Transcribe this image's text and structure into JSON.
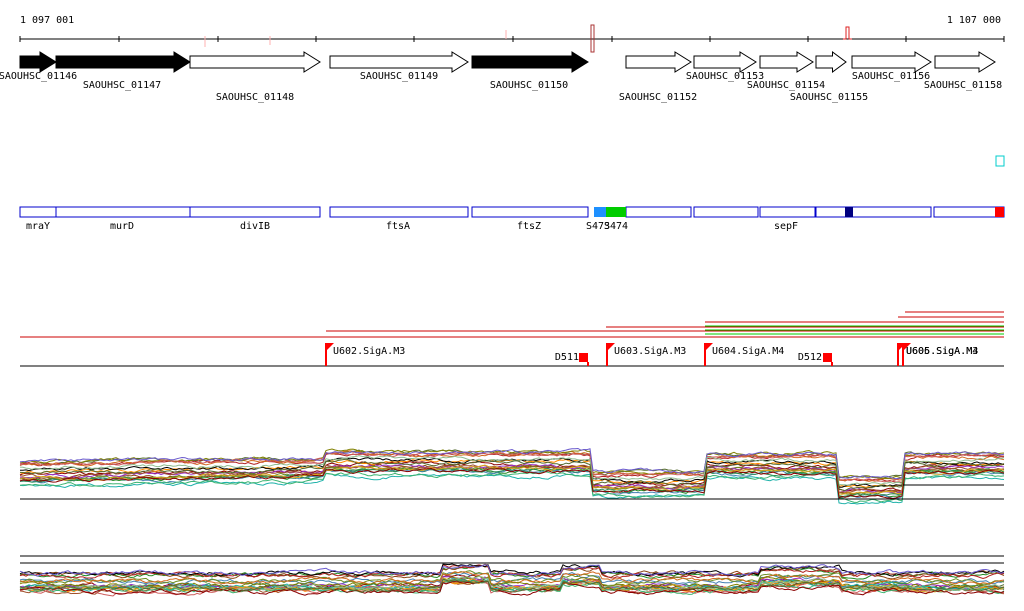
{
  "coordinates": {
    "start_label": "1 097 001",
    "end_label": "1 107 000"
  },
  "genes": [
    {
      "id": "SAOUHSC_01146",
      "strand": "+",
      "filled": true
    },
    {
      "id": "SAOUHSC_01147",
      "strand": "+",
      "filled": true
    },
    {
      "id": "SAOUHSC_01148",
      "strand": "+",
      "filled": false
    },
    {
      "id": "SAOUHSC_01149",
      "strand": "+",
      "filled": false
    },
    {
      "id": "SAOUHSC_01150",
      "strand": "+",
      "filled": true
    },
    {
      "id": "SAOUHSC_01152",
      "strand": "+",
      "filled": false
    },
    {
      "id": "SAOUHSC_01153",
      "strand": "+",
      "filled": false
    },
    {
      "id": "SAOUHSC_01154",
      "strand": "+",
      "filled": false
    },
    {
      "id": "SAOUHSC_01155",
      "strand": "+",
      "filled": false
    },
    {
      "id": "SAOUHSC_01156",
      "strand": "+",
      "filled": false
    },
    {
      "id": "SAOUHSC_01158",
      "strand": "+",
      "filled": false
    }
  ],
  "annotation_track": {
    "names": [
      "mraY",
      "murD",
      "divIB",
      "ftsA",
      "ftsZ",
      "S473",
      "S474",
      "sepF"
    ],
    "colors": {
      "outline": "#0000cc",
      "blue_segment": "#1e90ff",
      "green_segment": "#00cc00",
      "navy_segment": "#000080",
      "red_segment": "#ff0000"
    }
  },
  "promoters": [
    {
      "label": "U602.SigA.M3"
    },
    {
      "label": "D511"
    },
    {
      "label": "U603.SigA.M3"
    },
    {
      "label": "U604.SigA.M4"
    },
    {
      "label": "D512"
    },
    {
      "label": "U605.SigA.M4"
    },
    {
      "label": "U606.SigA.M3"
    }
  ],
  "colors": {
    "promoter_flag": "#ff0000",
    "track_line": "#cc0000",
    "green_line": "#00cc00",
    "axis": "#000000"
  }
}
